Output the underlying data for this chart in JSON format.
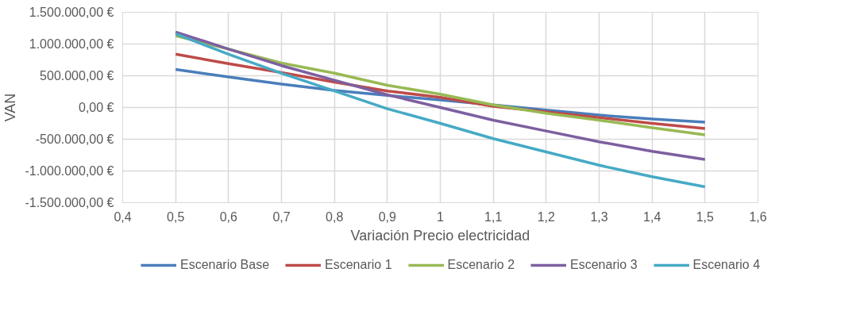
{
  "chart_data": {
    "type": "line",
    "xlabel": "Variación Precio electricidad",
    "ylabel": "VAN",
    "x": [
      0.5,
      0.6,
      0.7,
      0.8,
      0.9,
      1.0,
      1.1,
      1.2,
      1.3,
      1.4,
      1.5
    ],
    "series": [
      {
        "name": "Escenario Base",
        "color": "#4a7ebb",
        "values": [
          600000,
          480000,
          370000,
          270000,
          190000,
          120000,
          40000,
          -40000,
          -120000,
          -180000,
          -230000
        ]
      },
      {
        "name": "Escenario 1",
        "color": "#be4b48",
        "values": [
          840000,
          690000,
          550000,
          400000,
          260000,
          160000,
          20000,
          -70000,
          -160000,
          -250000,
          -330000
        ]
      },
      {
        "name": "Escenario 2",
        "color": "#98b954",
        "values": [
          1130000,
          920000,
          700000,
          540000,
          350000,
          210000,
          40000,
          -90000,
          -200000,
          -320000,
          -430000
        ]
      },
      {
        "name": "Escenario 3",
        "color": "#7d5fa0",
        "values": [
          1190000,
          920000,
          660000,
          430000,
          200000,
          0,
          -200000,
          -370000,
          -540000,
          -690000,
          -820000
        ]
      },
      {
        "name": "Escenario 4",
        "color": "#46aac5",
        "values": [
          1160000,
          840000,
          540000,
          260000,
          -20000,
          -250000,
          -490000,
          -700000,
          -910000,
          -1090000,
          -1250000
        ]
      }
    ],
    "xlim": [
      0.4,
      1.6
    ],
    "xticks": [
      {
        "value": 0.4,
        "label": "0,4"
      },
      {
        "value": 0.5,
        "label": "0,5"
      },
      {
        "value": 0.6,
        "label": "0,6"
      },
      {
        "value": 0.7,
        "label": "0,7"
      },
      {
        "value": 0.8,
        "label": "0,8"
      },
      {
        "value": 0.9,
        "label": "0,9"
      },
      {
        "value": 1.0,
        "label": "1"
      },
      {
        "value": 1.1,
        "label": "1,1"
      },
      {
        "value": 1.2,
        "label": "1,2"
      },
      {
        "value": 1.3,
        "label": "1,3"
      },
      {
        "value": 1.4,
        "label": "1,4"
      },
      {
        "value": 1.5,
        "label": "1,5"
      },
      {
        "value": 1.6,
        "label": "1,6"
      }
    ],
    "ylim": [
      -1500000,
      1500000
    ],
    "yticks": [
      {
        "value": -1500000,
        "label": "-1.500.000,00 €"
      },
      {
        "value": -1000000,
        "label": "-1.000.000,00 €"
      },
      {
        "value": -500000,
        "label": "-500.000,00 €"
      },
      {
        "value": 0,
        "label": "0,00 €"
      },
      {
        "value": 500000,
        "label": "500.000,00 €"
      },
      {
        "value": 1000000,
        "label": "1.000.000,00 €"
      },
      {
        "value": 1500000,
        "label": "1.500.000,00 €"
      }
    ],
    "grid": true,
    "legend": "bottom",
    "marker": "none",
    "line_style": "solid"
  }
}
